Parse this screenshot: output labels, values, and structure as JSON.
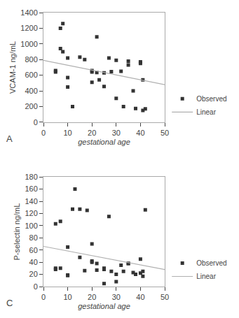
{
  "chart_data": [
    {
      "type": "scatter",
      "annotations": [
        "A"
      ],
      "xlabel": "gestational age",
      "ylabel": "VCAM-1 ng/mL",
      "xlim": [
        0,
        50
      ],
      "ylim": [
        0,
        1400
      ],
      "xticks": [
        0,
        10,
        20,
        30,
        40,
        50
      ],
      "yticks": [
        0,
        200,
        400,
        600,
        800,
        1000,
        1200,
        1400
      ],
      "grid": false,
      "legend": "outside right",
      "series": [
        {
          "name": "Observed",
          "type": "scatter",
          "marker": "square",
          "color": "#333333",
          "x": [
            5,
            5,
            7,
            7,
            8,
            8,
            10,
            10,
            10,
            12,
            15,
            17,
            20,
            20,
            20,
            22,
            22,
            23,
            25,
            25,
            27,
            28,
            30,
            30,
            32,
            33,
            35,
            35,
            37,
            38,
            40,
            40,
            41,
            41,
            42
          ],
          "values": [
            640,
            660,
            1200,
            940,
            900,
            1260,
            820,
            570,
            450,
            200,
            830,
            800,
            660,
            640,
            510,
            1090,
            635,
            540,
            630,
            455,
            820,
            645,
            790,
            305,
            650,
            200,
            780,
            730,
            400,
            175,
            750,
            770,
            540,
            150,
            170
          ]
        },
        {
          "name": "Linear",
          "type": "line",
          "line_style": "solid",
          "color": "#b0b0b0",
          "x": [
            0,
            50
          ],
          "values": [
            790,
            480
          ]
        }
      ]
    },
    {
      "type": "scatter",
      "annotations": [
        "C"
      ],
      "xlabel": "gestational age",
      "ylabel": "P-selectin ng/mL",
      "xlim": [
        0,
        50
      ],
      "ylim": [
        0,
        180
      ],
      "xticks": [
        0,
        10,
        20,
        30,
        40,
        50
      ],
      "yticks": [
        0,
        20,
        40,
        60,
        80,
        100,
        120,
        140,
        160,
        180
      ],
      "grid": false,
      "legend": "outside right",
      "series": [
        {
          "name": "Observed",
          "type": "scatter",
          "marker": "square",
          "color": "#333333",
          "x": [
            5,
            5,
            5,
            7,
            7,
            10,
            10,
            10,
            12,
            13,
            15,
            15,
            17,
            18,
            20,
            20,
            20,
            22,
            22,
            25,
            25,
            25,
            27,
            28,
            30,
            30,
            32,
            33,
            35,
            35,
            37,
            38,
            40,
            40,
            41,
            41,
            42
          ],
          "values": [
            30,
            28,
            103,
            107,
            30,
            19,
            18,
            65,
            127,
            160,
            48,
            127,
            26,
            125,
            40,
            42,
            70,
            38,
            27,
            28,
            5,
            30,
            115,
            25,
            20,
            8,
            35,
            25,
            38,
            38,
            23,
            20,
            45,
            22,
            25,
            17,
            126
          ]
        },
        {
          "name": "Linear",
          "type": "line",
          "line_style": "solid",
          "color": "#b0b0b0",
          "x": [
            0,
            50
          ],
          "values": [
            66,
            28
          ]
        }
      ]
    }
  ]
}
